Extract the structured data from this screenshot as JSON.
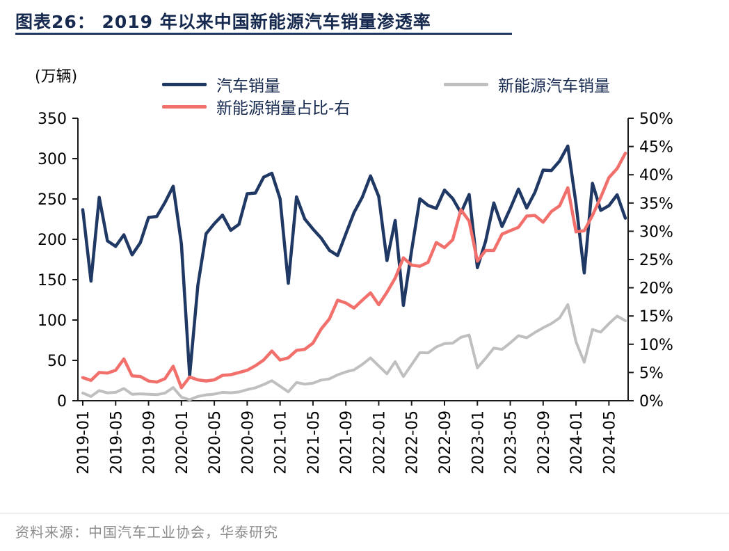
{
  "header": {
    "title": "图表26： 2019 年以来中国新能源汽车销量渗透率"
  },
  "unit_label": "(万辆)",
  "legend": [
    {
      "label": "汽车销量",
      "color": "#1F3864"
    },
    {
      "label": "新能源汽车销量",
      "color": "#BFBFBF"
    },
    {
      "label": "新能源销量占比-右",
      "color": "#F2706B"
    }
  ],
  "footer": {
    "source": "资料来源：中国汽车工业协会，华泰研究"
  },
  "chart_data": {
    "type": "line",
    "title": "2019 年以来中国新能源汽车销量渗透率",
    "x": [
      "2019-01",
      "2019-02",
      "2019-03",
      "2019-04",
      "2019-05",
      "2019-06",
      "2019-07",
      "2019-08",
      "2019-09",
      "2019-10",
      "2019-11",
      "2019-12",
      "2020-01",
      "2020-02",
      "2020-03",
      "2020-04",
      "2020-05",
      "2020-06",
      "2020-07",
      "2020-08",
      "2020-09",
      "2020-10",
      "2020-11",
      "2020-12",
      "2021-01",
      "2021-02",
      "2021-03",
      "2021-04",
      "2021-05",
      "2021-06",
      "2021-07",
      "2021-08",
      "2021-09",
      "2021-10",
      "2021-11",
      "2021-12",
      "2022-01",
      "2022-02",
      "2022-03",
      "2022-04",
      "2022-05",
      "2022-06",
      "2022-07",
      "2022-08",
      "2022-09",
      "2022-10",
      "2022-11",
      "2022-12",
      "2023-01",
      "2023-02",
      "2023-03",
      "2023-04",
      "2023-05",
      "2023-06",
      "2023-07",
      "2023-08",
      "2023-09",
      "2023-10",
      "2023-11",
      "2023-12",
      "2024-01",
      "2024-02",
      "2024-03",
      "2024-04",
      "2024-05",
      "2024-06",
      "2024-07"
    ],
    "x_tick_labels": [
      "2019-01",
      "2019-05",
      "2019-09",
      "2020-01",
      "2020-05",
      "2020-09",
      "2021-01",
      "2021-05",
      "2021-09",
      "2022-01",
      "2022-05",
      "2022-09",
      "2023-01",
      "2023-05",
      "2023-09",
      "2024-01",
      "2024-05"
    ],
    "left_axis": {
      "label": "(万辆)",
      "min": 0,
      "max": 350,
      "step": 50,
      "ticks": [
        "350",
        "300",
        "250",
        "200",
        "150",
        "100",
        "50",
        "0"
      ]
    },
    "right_axis": {
      "min": 0,
      "max": 50,
      "step": 5,
      "ticks": [
        "50%",
        "45%",
        "40%",
        "35%",
        "30%",
        "25%",
        "20%",
        "15%",
        "10%",
        "5%",
        "0%"
      ]
    },
    "grid": false,
    "legend_position": "top",
    "series": [
      {
        "name": "汽车销量",
        "axis": "left",
        "color": "#1F3864",
        "width": 4.5,
        "values": [
          236.7,
          148.2,
          252.0,
          198.0,
          191.3,
          205.6,
          180.8,
          195.8,
          227.1,
          228.4,
          245.7,
          265.8,
          194.1,
          31.0,
          143.0,
          207.0,
          219.4,
          230.0,
          211.2,
          218.6,
          256.5,
          257.3,
          277.0,
          281.9,
          250.3,
          145.5,
          252.6,
          225.2,
          212.8,
          201.5,
          186.4,
          179.9,
          206.7,
          233.3,
          252.2,
          278.6,
          253.1,
          173.7,
          223.4,
          118.1,
          186.2,
          250.2,
          242.0,
          238.3,
          261.0,
          250.5,
          232.8,
          255.6,
          164.9,
          197.6,
          245.1,
          215.9,
          238.2,
          262.2,
          238.8,
          258.2,
          285.8,
          285.3,
          297.0,
          315.6,
          243.9,
          158.4,
          269.4,
          235.9,
          241.7,
          255.2,
          226.2
        ]
      },
      {
        "name": "新能源汽车销量",
        "axis": "left",
        "color": "#BFBFBF",
        "width": 4,
        "values": [
          9.6,
          5.3,
          12.6,
          9.7,
          10.4,
          15.2,
          8.0,
          8.5,
          8.0,
          7.5,
          9.5,
          16.3,
          4.4,
          1.3,
          5.3,
          7.2,
          8.2,
          10.4,
          9.8,
          10.9,
          13.8,
          16.0,
          20.0,
          24.8,
          17.9,
          11.0,
          22.6,
          20.6,
          21.7,
          25.6,
          27.1,
          32.1,
          35.7,
          38.3,
          45.0,
          53.1,
          43.1,
          33.4,
          48.4,
          29.9,
          44.7,
          59.6,
          59.3,
          66.6,
          70.8,
          71.4,
          78.6,
          81.4,
          40.8,
          52.5,
          65.3,
          63.6,
          71.7,
          80.6,
          78.0,
          84.6,
          90.4,
          95.6,
          102.6,
          119.1,
          72.9,
          47.7,
          88.3,
          85.0,
          95.5,
          104.9,
          99.1
        ]
      },
      {
        "name": "新能源销量占比-右",
        "axis": "right",
        "color": "#F2706B",
        "width": 4.5,
        "values": [
          4.1,
          3.6,
          5.0,
          4.9,
          5.4,
          7.4,
          4.4,
          4.3,
          3.5,
          3.3,
          3.9,
          6.1,
          2.3,
          4.2,
          3.7,
          3.5,
          3.7,
          4.5,
          4.6,
          5.0,
          5.4,
          6.2,
          7.2,
          8.8,
          7.2,
          7.6,
          8.9,
          9.1,
          10.2,
          12.7,
          14.5,
          17.8,
          17.3,
          16.4,
          17.8,
          19.1,
          17.0,
          19.2,
          21.7,
          25.3,
          24.0,
          23.8,
          24.5,
          28.0,
          27.1,
          28.5,
          33.8,
          31.8,
          24.7,
          26.6,
          26.6,
          29.5,
          30.1,
          30.7,
          32.7,
          32.8,
          31.6,
          33.5,
          34.5,
          37.7,
          29.9,
          30.1,
          32.8,
          36.0,
          39.5,
          41.1,
          43.8
        ]
      }
    ]
  }
}
